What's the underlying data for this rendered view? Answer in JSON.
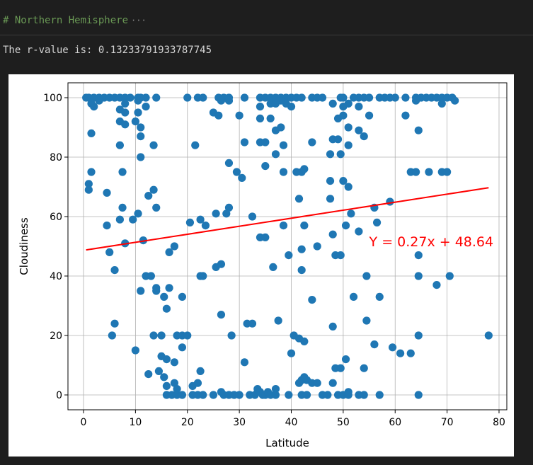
{
  "cell": {
    "comment": "# Northern Hemisphere",
    "collapsed_indicator": "···",
    "output_label": "The r-value is: ",
    "r_value": "0.13233791933787745"
  },
  "chart_data": {
    "type": "scatter",
    "xlabel": "Latitude",
    "ylabel": "Cloudiness",
    "xlim": [
      -3,
      81.5
    ],
    "ylim": [
      -5,
      105
    ],
    "xticks": [
      0,
      10,
      20,
      30,
      40,
      50,
      60,
      70,
      80
    ],
    "yticks": [
      0,
      20,
      40,
      60,
      80,
      100
    ],
    "grid": true,
    "marker_color": "#1f77b4",
    "regression": {
      "slope": 0.27,
      "intercept": 48.64,
      "x_range": [
        0.5,
        78
      ],
      "color": "#ff0000",
      "label": "Y = 0.27x + 48.64",
      "label_position": [
        55,
        50
      ]
    },
    "points": [
      [
        0.5,
        100
      ],
      [
        1,
        100
      ],
      [
        2,
        100
      ],
      [
        3,
        100
      ],
      [
        4,
        100
      ],
      [
        5,
        100
      ],
      [
        6,
        100
      ],
      [
        7,
        100
      ],
      [
        8,
        100
      ],
      [
        9,
        100
      ],
      [
        10.5,
        100
      ],
      [
        11,
        100
      ],
      [
        12,
        100
      ],
      [
        14,
        100
      ],
      [
        20,
        100
      ],
      [
        22,
        100
      ],
      [
        23,
        100
      ],
      [
        26,
        100
      ],
      [
        27,
        100
      ],
      [
        28,
        100
      ],
      [
        31,
        100
      ],
      [
        34,
        100
      ],
      [
        35,
        100
      ],
      [
        36,
        100
      ],
      [
        37,
        100
      ],
      [
        38,
        100
      ],
      [
        39,
        100
      ],
      [
        40,
        100
      ],
      [
        41,
        100
      ],
      [
        42,
        100
      ],
      [
        44,
        100
      ],
      [
        45,
        100
      ],
      [
        46,
        100
      ],
      [
        49.5,
        100
      ],
      [
        50,
        100
      ],
      [
        52,
        100
      ],
      [
        53,
        100
      ],
      [
        54,
        100
      ],
      [
        55,
        100
      ],
      [
        57,
        100
      ],
      [
        58,
        100
      ],
      [
        59,
        100
      ],
      [
        60,
        100
      ],
      [
        62,
        100
      ],
      [
        64,
        100
      ],
      [
        65,
        100
      ],
      [
        66,
        100
      ],
      [
        67,
        100
      ],
      [
        68,
        100
      ],
      [
        69,
        100
      ],
      [
        70,
        100
      ],
      [
        71,
        100
      ],
      [
        1.5,
        98
      ],
      [
        2,
        97
      ],
      [
        3,
        99
      ],
      [
        7,
        96
      ],
      [
        8,
        98
      ],
      [
        10.5,
        99
      ],
      [
        12,
        97
      ],
      [
        26.5,
        99
      ],
      [
        28,
        99
      ],
      [
        34,
        97
      ],
      [
        36,
        98
      ],
      [
        37,
        98
      ],
      [
        38,
        99
      ],
      [
        39,
        98
      ],
      [
        40,
        97
      ],
      [
        48,
        98
      ],
      [
        50,
        97
      ],
      [
        51,
        98
      ],
      [
        53,
        97
      ],
      [
        64,
        99
      ],
      [
        69,
        98
      ],
      [
        71.5,
        99
      ],
      [
        8,
        95
      ],
      [
        10.5,
        95
      ],
      [
        25,
        95
      ],
      [
        26,
        94
      ],
      [
        30,
        94
      ],
      [
        34,
        93
      ],
      [
        36,
        93
      ],
      [
        49,
        93
      ],
      [
        50,
        94
      ],
      [
        55,
        94
      ],
      [
        62,
        94
      ],
      [
        7,
        92
      ],
      [
        8,
        91
      ],
      [
        10,
        92
      ],
      [
        1.5,
        88
      ],
      [
        11,
        90
      ],
      [
        37,
        89
      ],
      [
        38,
        90
      ],
      [
        51,
        90
      ],
      [
        53,
        89
      ],
      [
        54,
        87
      ],
      [
        64.5,
        89
      ],
      [
        11,
        87
      ],
      [
        31,
        85
      ],
      [
        34,
        85
      ],
      [
        35,
        85
      ],
      [
        44,
        85
      ],
      [
        48,
        86
      ],
      [
        49,
        86
      ],
      [
        7,
        84
      ],
      [
        13.5,
        84
      ],
      [
        21.5,
        84
      ],
      [
        38.5,
        84
      ],
      [
        51,
        84
      ],
      [
        11,
        80
      ],
      [
        37,
        81
      ],
      [
        47.5,
        81
      ],
      [
        49.5,
        81
      ],
      [
        28,
        78
      ],
      [
        35,
        77
      ],
      [
        1.5,
        75
      ],
      [
        7.5,
        75
      ],
      [
        29.5,
        75
      ],
      [
        38.5,
        75
      ],
      [
        41,
        75
      ],
      [
        42,
        75
      ],
      [
        42.5,
        76
      ],
      [
        63,
        75
      ],
      [
        64,
        75
      ],
      [
        66.5,
        75
      ],
      [
        69,
        75
      ],
      [
        70,
        75
      ],
      [
        1,
        71
      ],
      [
        1,
        69
      ],
      [
        13.5,
        69
      ],
      [
        30.5,
        73
      ],
      [
        47.5,
        72
      ],
      [
        50,
        72
      ],
      [
        51,
        70
      ],
      [
        4.5,
        68
      ],
      [
        12.5,
        67
      ],
      [
        47.5,
        66
      ],
      [
        41.5,
        66
      ],
      [
        59,
        65
      ],
      [
        7.5,
        63
      ],
      [
        14,
        63
      ],
      [
        28,
        63
      ],
      [
        56,
        63
      ],
      [
        10.5,
        61
      ],
      [
        25.5,
        61
      ],
      [
        27.5,
        61
      ],
      [
        51.5,
        61
      ],
      [
        7,
        59
      ],
      [
        9.5,
        59
      ],
      [
        20.5,
        58
      ],
      [
        22.5,
        59
      ],
      [
        23.5,
        57
      ],
      [
        32.5,
        60
      ],
      [
        38.5,
        57
      ],
      [
        42.5,
        57
      ],
      [
        50.5,
        57
      ],
      [
        56.5,
        58
      ],
      [
        4.5,
        57
      ],
      [
        11.5,
        52
      ],
      [
        8,
        51
      ],
      [
        34,
        53
      ],
      [
        35,
        53
      ],
      [
        45,
        50
      ],
      [
        48,
        54
      ],
      [
        53,
        55
      ],
      [
        17.5,
        50
      ],
      [
        5,
        48
      ],
      [
        16.5,
        48
      ],
      [
        25.5,
        43
      ],
      [
        26.5,
        44
      ],
      [
        36.5,
        43
      ],
      [
        39.5,
        47
      ],
      [
        42,
        49
      ],
      [
        48.5,
        47
      ],
      [
        49.5,
        47
      ],
      [
        64.5,
        47
      ],
      [
        6,
        42
      ],
      [
        12,
        40
      ],
      [
        13,
        40
      ],
      [
        22.5,
        40
      ],
      [
        23,
        40
      ],
      [
        42,
        42
      ],
      [
        54.5,
        40
      ],
      [
        64.5,
        40
      ],
      [
        70.5,
        40
      ],
      [
        11,
        35
      ],
      [
        14,
        36
      ],
      [
        14,
        35
      ],
      [
        15.5,
        33
      ],
      [
        16.5,
        36
      ],
      [
        19,
        33
      ],
      [
        44,
        32
      ],
      [
        57,
        33
      ],
      [
        52,
        33
      ],
      [
        68,
        37
      ],
      [
        16,
        29
      ],
      [
        26.5,
        27
      ],
      [
        6,
        24
      ],
      [
        31.5,
        24
      ],
      [
        32.5,
        24
      ],
      [
        37.5,
        25
      ],
      [
        48,
        23
      ],
      [
        54.5,
        25
      ],
      [
        5.5,
        20
      ],
      [
        13.5,
        20
      ],
      [
        15,
        20
      ],
      [
        18,
        20
      ],
      [
        19,
        20
      ],
      [
        20,
        20
      ],
      [
        28.5,
        20
      ],
      [
        40.5,
        20
      ],
      [
        41.5,
        19
      ],
      [
        42.5,
        18
      ],
      [
        56,
        17
      ],
      [
        59.5,
        16
      ],
      [
        61,
        14
      ],
      [
        63,
        14
      ],
      [
        64.5,
        20
      ],
      [
        78,
        20
      ],
      [
        10,
        15
      ],
      [
        15,
        13
      ],
      [
        16,
        12
      ],
      [
        17.5,
        11
      ],
      [
        19,
        16
      ],
      [
        31,
        11
      ],
      [
        40,
        14
      ],
      [
        50.5,
        12
      ],
      [
        54,
        9
      ],
      [
        48.5,
        9
      ],
      [
        49.5,
        9
      ],
      [
        12.5,
        7
      ],
      [
        14.5,
        8
      ],
      [
        15.5,
        6
      ],
      [
        16,
        3
      ],
      [
        17.5,
        4
      ],
      [
        16,
        0
      ],
      [
        17,
        0
      ],
      [
        18,
        0
      ],
      [
        19,
        0
      ],
      [
        18,
        2
      ],
      [
        21,
        3
      ],
      [
        22,
        4
      ],
      [
        22.5,
        8
      ],
      [
        21,
        0
      ],
      [
        22,
        0
      ],
      [
        23,
        0
      ],
      [
        25,
        0
      ],
      [
        27,
        0
      ],
      [
        26.5,
        1
      ],
      [
        28,
        0
      ],
      [
        29,
        0
      ],
      [
        30,
        0
      ],
      [
        32,
        0
      ],
      [
        33,
        0
      ],
      [
        33.5,
        2
      ],
      [
        34,
        1
      ],
      [
        34.5,
        0
      ],
      [
        35,
        0
      ],
      [
        35.5,
        1
      ],
      [
        36,
        0
      ],
      [
        37,
        2
      ],
      [
        37,
        0
      ],
      [
        39.5,
        0
      ],
      [
        41.5,
        4
      ],
      [
        42,
        5
      ],
      [
        42.5,
        6
      ],
      [
        43,
        5
      ],
      [
        42,
        0
      ],
      [
        43,
        0
      ],
      [
        44,
        4
      ],
      [
        45,
        4
      ],
      [
        46,
        0
      ],
      [
        47,
        0
      ],
      [
        48,
        4
      ],
      [
        49,
        0
      ],
      [
        50,
        0
      ],
      [
        51,
        1
      ],
      [
        51,
        0
      ],
      [
        53,
        0
      ],
      [
        54,
        0
      ],
      [
        57,
        0
      ],
      [
        64.5,
        0
      ]
    ]
  }
}
